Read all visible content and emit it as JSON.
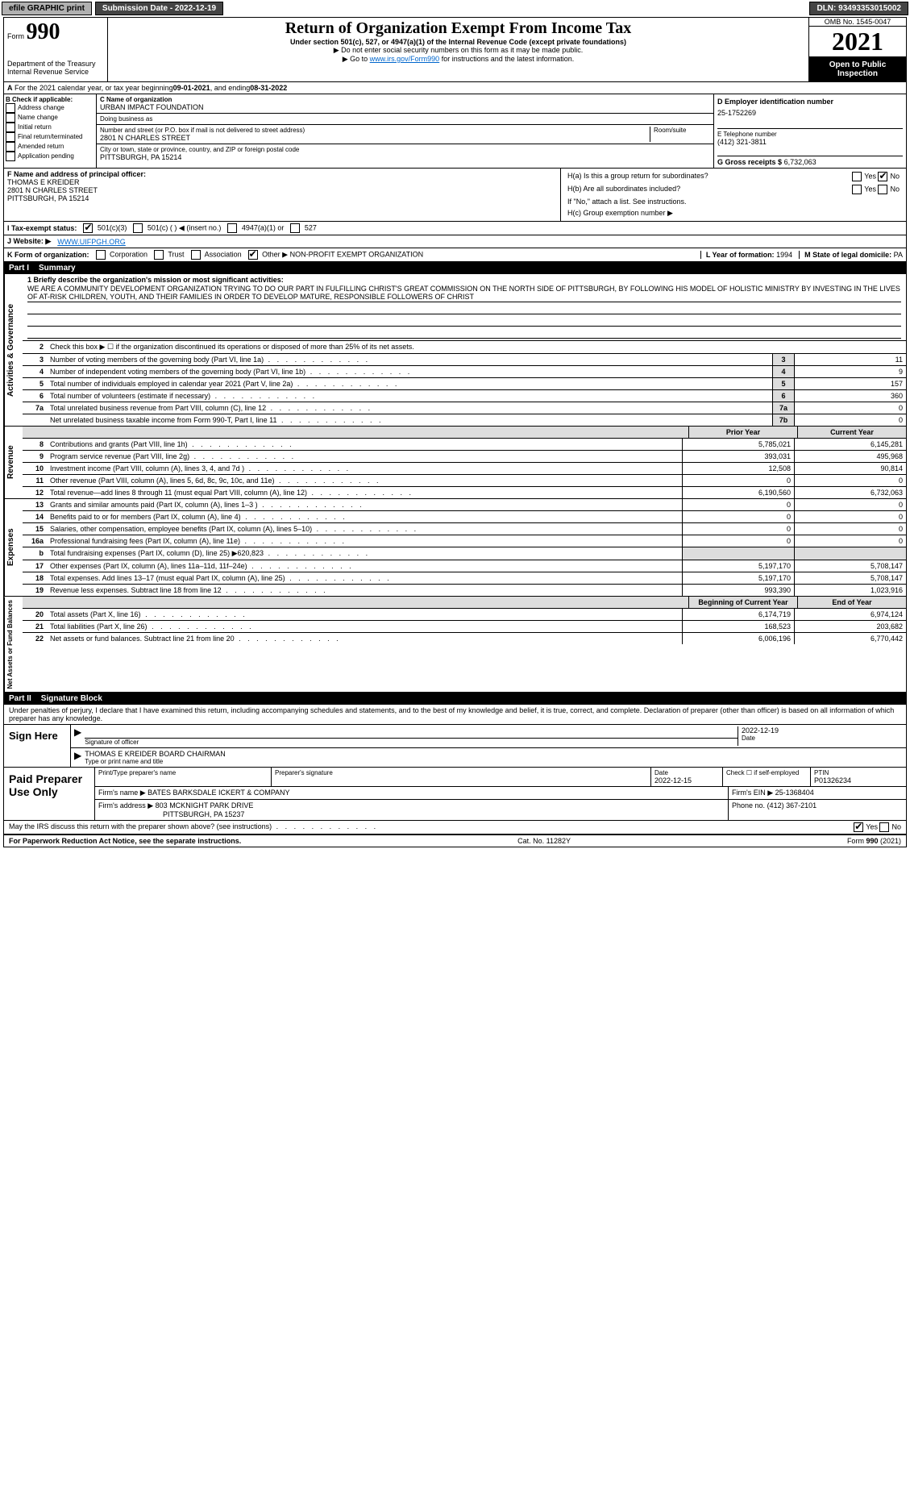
{
  "topbar": {
    "efile": "efile GRAPHIC print",
    "submission_label": "Submission Date - 2022-12-19",
    "dln_label": "DLN: 93493353015002"
  },
  "header": {
    "form_prefix": "Form",
    "form_number": "990",
    "title": "Return of Organization Exempt From Income Tax",
    "subtitle": "Under section 501(c), 527, or 4947(a)(1) of the Internal Revenue Code (except private foundations)",
    "note1": "▶ Do not enter social security numbers on this form as it may be made public.",
    "note2_prefix": "▶ Go to ",
    "note2_link": "www.irs.gov/Form990",
    "note2_suffix": " for instructions and the latest information.",
    "omb": "OMB No. 1545-0047",
    "year": "2021",
    "open_public": "Open to Public Inspection",
    "dept": "Department of the Treasury",
    "irs": "Internal Revenue Service"
  },
  "rowA": {
    "text_prefix": "For the 2021 calendar year, or tax year beginning ",
    "begin": "09-01-2021",
    "mid": " , and ending ",
    "end": "08-31-2022"
  },
  "sectionB": {
    "label": "B Check if applicable:",
    "items": [
      "Address change",
      "Name change",
      "Initial return",
      "Final return/terminated",
      "Amended return",
      "Application pending"
    ]
  },
  "sectionC": {
    "name_label": "C Name of organization",
    "name": "URBAN IMPACT FOUNDATION",
    "dba_label": "Doing business as",
    "dba": "",
    "addr_label": "Number and street (or P.O. box if mail is not delivered to street address)",
    "room_label": "Room/suite",
    "addr": "2801 N CHARLES STREET",
    "city_label": "City or town, state or province, country, and ZIP or foreign postal code",
    "city": "PITTSBURGH, PA  15214"
  },
  "sectionD": {
    "label": "D Employer identification number",
    "ein": "25-1752269",
    "phone_label": "E Telephone number",
    "phone": "(412) 321-3811",
    "gross_label": "G Gross receipts $",
    "gross": "6,732,063"
  },
  "sectionF": {
    "label": "F Name and address of principal officer:",
    "name": "THOMAS E KREIDER",
    "addr1": "2801 N CHARLES STREET",
    "addr2": "PITTSBURGH, PA  15214"
  },
  "sectionH": {
    "a_label": "H(a)  Is this a group return for subordinates?",
    "b_label": "H(b)  Are all subordinates included?",
    "b_note": "If \"No,\" attach a list. See instructions.",
    "c_label": "H(c)  Group exemption number ▶",
    "yes": "Yes",
    "no": "No"
  },
  "rowI": {
    "label": "I  Tax-exempt status:",
    "opt1": "501(c)(3)",
    "opt2": "501(c) (  ) ◀ (insert no.)",
    "opt3": "4947(a)(1) or",
    "opt4": "527"
  },
  "rowJ": {
    "label": "J  Website: ▶",
    "value": "WWW.UIFPGH.ORG"
  },
  "rowK": {
    "label": "K Form of organization:",
    "opts": [
      "Corporation",
      "Trust",
      "Association",
      "Other ▶"
    ],
    "other_val": "NON-PROFIT EXEMPT ORGANIZATION",
    "l_label": "L Year of formation:",
    "l_val": "1994",
    "m_label": "M State of legal domicile:",
    "m_val": "PA"
  },
  "part1": {
    "label": "Part I",
    "title": "Summary"
  },
  "governance": {
    "label": "Activities & Governance",
    "line1_label": "1  Briefly describe the organization's mission or most significant activities:",
    "mission": "WE ARE A COMMUNITY DEVELOPMENT ORGANIZATION TRYING TO DO OUR PART IN FULFILLING CHRIST'S GREAT COMMISSION ON THE NORTH SIDE OF PITTSBURGH, BY FOLLOWING HIS MODEL OF HOLISTIC MINISTRY BY INVESTING IN THE LIVES OF AT-RISK CHILDREN, YOUTH, AND THEIR FAMILIES IN ORDER TO DEVELOP MATURE, RESPONSIBLE FOLLOWERS OF CHRIST",
    "line2": "Check this box ▶ ☐ if the organization discontinued its operations or disposed of more than 25% of its net assets.",
    "rows": [
      {
        "n": "3",
        "t": "Number of voting members of the governing body (Part VI, line 1a)",
        "box": "3",
        "v": "11"
      },
      {
        "n": "4",
        "t": "Number of independent voting members of the governing body (Part VI, line 1b)",
        "box": "4",
        "v": "9"
      },
      {
        "n": "5",
        "t": "Total number of individuals employed in calendar year 2021 (Part V, line 2a)",
        "box": "5",
        "v": "157"
      },
      {
        "n": "6",
        "t": "Total number of volunteers (estimate if necessary)",
        "box": "6",
        "v": "360"
      },
      {
        "n": "7a",
        "t": "Total unrelated business revenue from Part VIII, column (C), line 12",
        "box": "7a",
        "v": "0"
      },
      {
        "n": "",
        "t": "Net unrelated business taxable income from Form 990-T, Part I, line 11",
        "box": "7b",
        "v": "0"
      }
    ]
  },
  "revenue": {
    "label": "Revenue",
    "hdr_prior": "Prior Year",
    "hdr_current": "Current Year",
    "rows": [
      {
        "n": "8",
        "t": "Contributions and grants (Part VIII, line 1h)",
        "p": "5,785,021",
        "c": "6,145,281"
      },
      {
        "n": "9",
        "t": "Program service revenue (Part VIII, line 2g)",
        "p": "393,031",
        "c": "495,968"
      },
      {
        "n": "10",
        "t": "Investment income (Part VIII, column (A), lines 3, 4, and 7d )",
        "p": "12,508",
        "c": "90,814"
      },
      {
        "n": "11",
        "t": "Other revenue (Part VIII, column (A), lines 5, 6d, 8c, 9c, 10c, and 11e)",
        "p": "0",
        "c": "0"
      },
      {
        "n": "12",
        "t": "Total revenue—add lines 8 through 11 (must equal Part VIII, column (A), line 12)",
        "p": "6,190,560",
        "c": "6,732,063"
      }
    ]
  },
  "expenses": {
    "label": "Expenses",
    "rows": [
      {
        "n": "13",
        "t": "Grants and similar amounts paid (Part IX, column (A), lines 1–3 )",
        "p": "0",
        "c": "0"
      },
      {
        "n": "14",
        "t": "Benefits paid to or for members (Part IX, column (A), line 4)",
        "p": "0",
        "c": "0"
      },
      {
        "n": "15",
        "t": "Salaries, other compensation, employee benefits (Part IX, column (A), lines 5–10)",
        "p": "0",
        "c": "0"
      },
      {
        "n": "16a",
        "t": "Professional fundraising fees (Part IX, column (A), line 11e)",
        "p": "0",
        "c": "0"
      },
      {
        "n": "b",
        "t": "Total fundraising expenses (Part IX, column (D), line 25) ▶620,823",
        "p": "",
        "c": ""
      },
      {
        "n": "17",
        "t": "Other expenses (Part IX, column (A), lines 11a–11d, 11f–24e)",
        "p": "5,197,170",
        "c": "5,708,147"
      },
      {
        "n": "18",
        "t": "Total expenses. Add lines 13–17 (must equal Part IX, column (A), line 25)",
        "p": "5,197,170",
        "c": "5,708,147"
      },
      {
        "n": "19",
        "t": "Revenue less expenses. Subtract line 18 from line 12",
        "p": "993,390",
        "c": "1,023,916"
      }
    ]
  },
  "netassets": {
    "label": "Net Assets or Fund Balances",
    "hdr_begin": "Beginning of Current Year",
    "hdr_end": "End of Year",
    "rows": [
      {
        "n": "20",
        "t": "Total assets (Part X, line 16)",
        "p": "6,174,719",
        "c": "6,974,124"
      },
      {
        "n": "21",
        "t": "Total liabilities (Part X, line 26)",
        "p": "168,523",
        "c": "203,682"
      },
      {
        "n": "22",
        "t": "Net assets or fund balances. Subtract line 21 from line 20",
        "p": "6,006,196",
        "c": "6,770,442"
      }
    ]
  },
  "part2": {
    "label": "Part II",
    "title": "Signature Block",
    "penalty": "Under penalties of perjury, I declare that I have examined this return, including accompanying schedules and statements, and to the best of my knowledge and belief, it is true, correct, and complete. Declaration of preparer (other than officer) is based on all information of which preparer has any knowledge."
  },
  "sign": {
    "label": "Sign Here",
    "sig_officer": "Signature of officer",
    "date": "2022-12-19",
    "date_label": "Date",
    "name": "THOMAS E KREIDER  BOARD CHAIRMAN",
    "name_label": "Type or print name and title"
  },
  "paid": {
    "label": "Paid Preparer Use Only",
    "h1": "Print/Type preparer's name",
    "h2": "Preparer's signature",
    "h3": "Date",
    "h3v": "2022-12-15",
    "h4": "Check ☐ if self-employed",
    "h5": "PTIN",
    "h5v": "P01326234",
    "firm_label": "Firm's name    ▶",
    "firm": "BATES BARKSDALE ICKERT & COMPANY",
    "ein_label": "Firm's EIN ▶",
    "ein": "25-1368404",
    "addr_label": "Firm's address ▶",
    "addr": "803 MCKNIGHT PARK DRIVE",
    "addr2": "PITTSBURGH, PA  15237",
    "phone_label": "Phone no.",
    "phone": "(412) 367-2101"
  },
  "discuss": {
    "text": "May the IRS discuss this return with the preparer shown above? (see instructions)",
    "yes": "Yes",
    "no": "No"
  },
  "footer": {
    "left": "For Paperwork Reduction Act Notice, see the separate instructions.",
    "mid": "Cat. No. 11282Y",
    "right_prefix": "Form ",
    "right_form": "990",
    "right_suffix": " (2021)"
  }
}
